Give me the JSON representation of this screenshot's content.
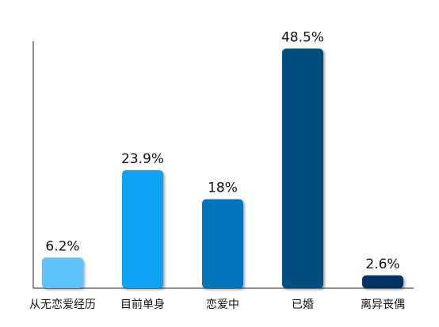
{
  "chart_data": {
    "type": "bar",
    "categories": [
      "从无恋爱经历",
      "目前单身",
      "恋爱中",
      "已婚",
      "离异丧偶"
    ],
    "values": [
      6.2,
      23.9,
      18,
      48.5,
      2.6
    ],
    "value_labels": [
      "6.2%",
      "23.9%",
      "18%",
      "48.5%",
      "2.6%"
    ],
    "colors": [
      "#5cc3fb",
      "#0aa2f6",
      "#0074bd",
      "#004d80",
      "#003163"
    ],
    "ylim": [
      0,
      50
    ]
  }
}
